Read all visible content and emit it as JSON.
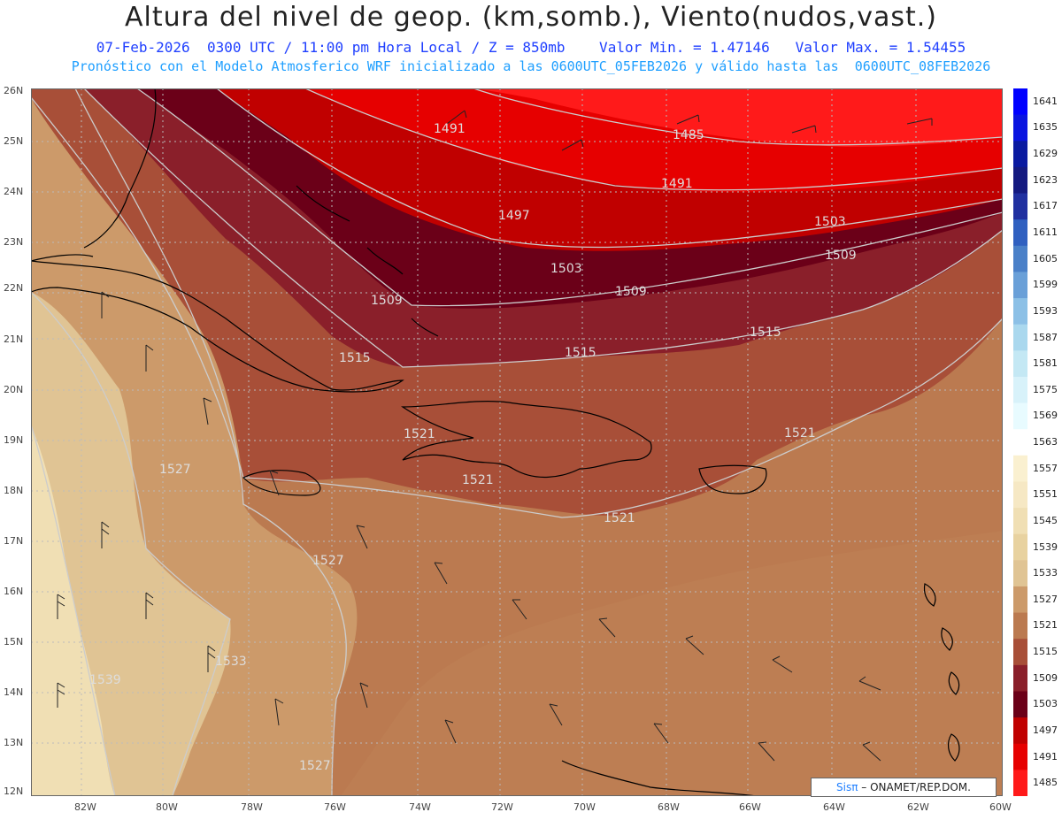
{
  "header": {
    "title": "Altura del nivel de geop. (km,somb.), Viento(nudos,vast.)",
    "line1": "07-Feb-2026  0300 UTC / 11:00 pm Hora Local / Z = 850mb    Valor Min. = 1.47146   Valor Max. = 1.54455",
    "line2": "Pronóstico con el Modelo Atmosferico WRF inicializado a las 0600UTC_05FEB2026 y válido hasta las  0600UTC_08FEB2026"
  },
  "map": {
    "lat_labels": [
      "26N",
      "25N",
      "24N",
      "23N",
      "22N",
      "21N",
      "20N",
      "19N",
      "18N",
      "17N",
      "16N",
      "15N",
      "14N",
      "13N",
      "12N"
    ],
    "lon_labels": [
      "82W",
      "80W",
      "78W",
      "76W",
      "74W",
      "72W",
      "70W",
      "68W",
      "66W",
      "64W",
      "62W",
      "60W"
    ],
    "contour_labels": [
      "1491",
      "1485",
      "1491",
      "1497",
      "1503",
      "1503",
      "1509",
      "1509",
      "1509",
      "1515",
      "1515",
      "1515",
      "1521",
      "1521",
      "1521",
      "1521",
      "1527",
      "1527",
      "1527",
      "1533",
      "1539"
    ],
    "colors": {
      "c1485": "#ff1a1a",
      "c1491": "#e60000",
      "c1497": "#c00000",
      "c1503": "#6b0018",
      "c1509": "#8a1f2a",
      "c1515": "#a84f38",
      "c1521": "#bb7a50",
      "c1527": "#cc9a6a",
      "c1533": "#e0c494",
      "c1539": "#f0dfb4",
      "grid": "#bbbbbb",
      "contour": "#cccccc",
      "coast": "#000000",
      "barb": "#222222"
    }
  },
  "legend": {
    "labels": [
      "1641",
      "1635",
      "1629",
      "1623",
      "1617",
      "1611",
      "1605",
      "1599",
      "1593",
      "1587",
      "1581",
      "1575",
      "1569",
      "1563",
      "1557",
      "1551",
      "1545",
      "1539",
      "1533",
      "1527",
      "1521",
      "1515",
      "1509",
      "1503",
      "1497",
      "1491",
      "1485"
    ],
    "colors": [
      "#0000ff",
      "#0a14e0",
      "#0a1aa0",
      "#141a80",
      "#2030a0",
      "#3060c0",
      "#4a80c8",
      "#6aa0d8",
      "#8cc0e6",
      "#aad8ee",
      "#c4e8f4",
      "#d8f2fa",
      "#e8fbff",
      "#ffffff",
      "#faf0d0",
      "#f6e8c4",
      "#f0dfb4",
      "#e8d2a0",
      "#e0c494",
      "#cc9a6a",
      "#bb7a50",
      "#a84f38",
      "#8a1f2a",
      "#6b0018",
      "#c00000",
      "#e60000",
      "#ff1a1a"
    ]
  },
  "credit": {
    "sis": "Sisπ",
    "rest": " – ONAMET/REP.DOM."
  }
}
